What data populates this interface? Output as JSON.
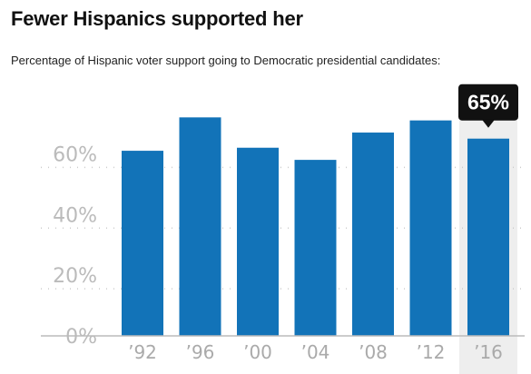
{
  "title": "Fewer Hispanics supported her",
  "subtitle": "Percentage of Hispanic voter support going to Democratic presidential candidates:",
  "colors": {
    "bar": "#1273b8",
    "highlight_band": "#eeeeee",
    "callout_bg": "#111111",
    "grid": "#cccccc",
    "tick_text": "#bbbbbb"
  },
  "chart_data": {
    "type": "bar",
    "categories": [
      "’92",
      "’96",
      "’00",
      "’04",
      "’08",
      "’12",
      "’16"
    ],
    "values": [
      61,
      72,
      62,
      58,
      67,
      71,
      65
    ],
    "ylim": [
      0,
      70
    ],
    "yticks": [
      0,
      20,
      40,
      60
    ],
    "ytick_labels": [
      "0%",
      "20%",
      "40%",
      "60%"
    ],
    "grid": true,
    "highlight_index": 6,
    "callout_label": "65%"
  }
}
